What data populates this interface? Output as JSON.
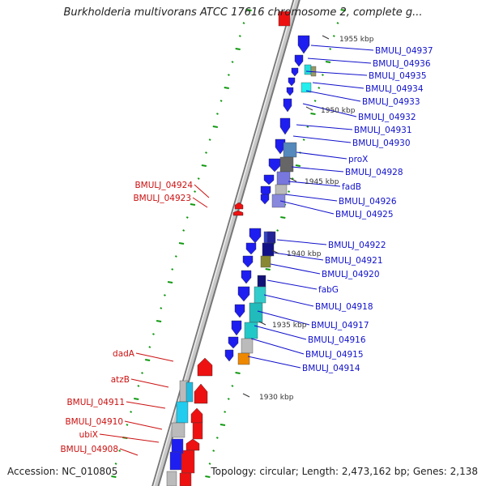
{
  "title": "Burkholderia multivorans ATCC 17616 chromosome 2, complete g...",
  "footer": {
    "accession": "Accession: NC_010805",
    "summary": "Topology: circular; Length: 2,473,162 bp; Genes: 2,138"
  },
  "colors": {
    "forward_label": "#1010cc",
    "reverse_label": "#cc1010",
    "forward_gene": "#1e1ef0",
    "reverse_gene": "#ee1111",
    "tick": "#119911",
    "backbone": "#999999"
  },
  "scale_marks": [
    "1955 kbp",
    "1950 kbp",
    "1945 kbp",
    "1940 kbp",
    "1935 kbp",
    "1930 kbp"
  ],
  "forward_genes": [
    {
      "label": "BMULJ_04937"
    },
    {
      "label": "BMULJ_04936"
    },
    {
      "label": "BMULJ_04935"
    },
    {
      "label": "BMULJ_04934"
    },
    {
      "label": "BMULJ_04933"
    },
    {
      "label": "BMULJ_04932"
    },
    {
      "label": "BMULJ_04931"
    },
    {
      "label": "BMULJ_04930"
    },
    {
      "label": "proX"
    },
    {
      "label": "BMULJ_04928"
    },
    {
      "label": "fadB"
    },
    {
      "label": "BMULJ_04926"
    },
    {
      "label": "BMULJ_04925"
    },
    {
      "label": "BMULJ_04922"
    },
    {
      "label": "BMULJ_04921"
    },
    {
      "label": "BMULJ_04920"
    },
    {
      "label": "fabG"
    },
    {
      "label": "BMULJ_04918"
    },
    {
      "label": "BMULJ_04917"
    },
    {
      "label": "BMULJ_04916"
    },
    {
      "label": "BMULJ_04915"
    },
    {
      "label": "BMULJ_04914"
    }
  ],
  "reverse_genes": [
    {
      "label": "BMULJ_04924"
    },
    {
      "label": "BMULJ_04923"
    },
    {
      "label": "dadA"
    },
    {
      "label": "atzB"
    },
    {
      "label": "BMULJ_04911"
    },
    {
      "label": "BMULJ_04910"
    },
    {
      "label": "ubiX"
    },
    {
      "label": "BMULJ_04908"
    }
  ]
}
